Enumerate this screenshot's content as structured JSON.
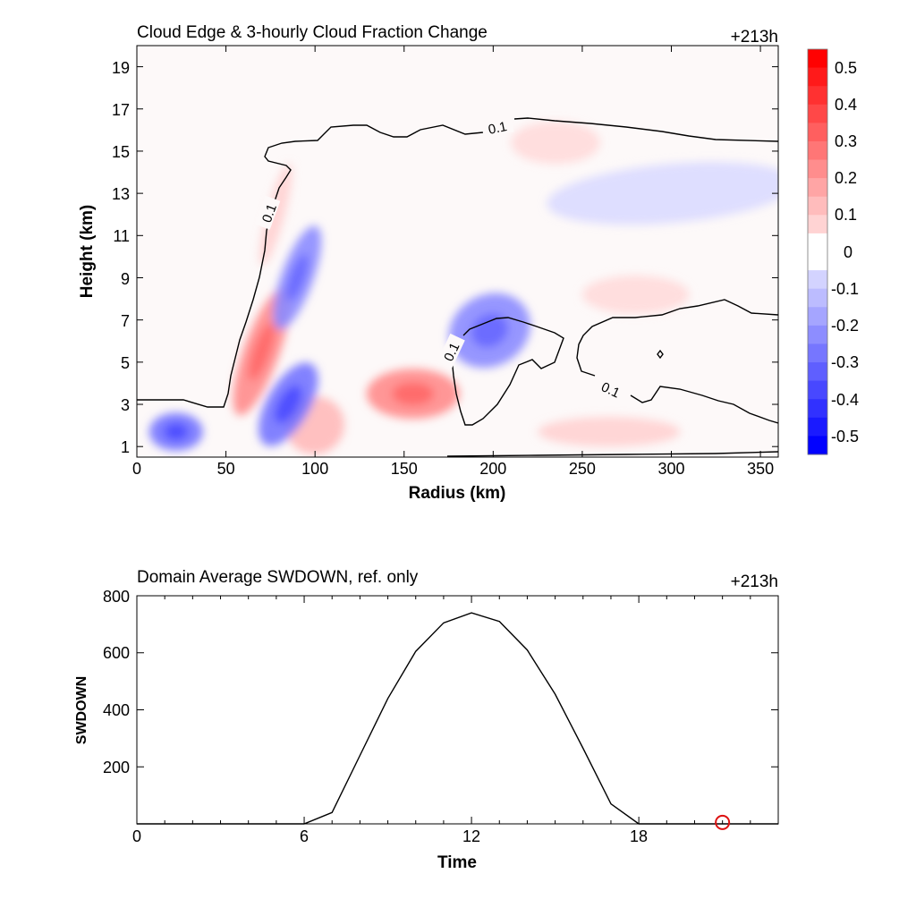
{
  "chart_data": [
    {
      "type": "heatmap",
      "title": "Cloud Edge & 3-hourly Cloud Fraction Change",
      "time_label": "+213h",
      "xlabel": "Radius (km)",
      "ylabel": "Height (km)",
      "xlim": [
        0,
        360
      ],
      "ylim": [
        0.5,
        20
      ],
      "xticks": [
        "0",
        "50",
        "100",
        "150",
        "200",
        "250",
        "300",
        "350"
      ],
      "yticks": [
        "1",
        "3",
        "5",
        "7",
        "9",
        "11",
        "13",
        "15",
        "17",
        "19"
      ],
      "colorbar": {
        "labels": [
          "0.5",
          "0.4",
          "0.3",
          "0.2",
          "0.1",
          "0",
          "-0.1",
          "-0.2",
          "-0.3",
          "-0.4",
          "-0.5"
        ],
        "min": -0.55,
        "max": 0.55,
        "step": 0.05,
        "positive_color": "#ff0000",
        "negative_color": "#0000ff"
      },
      "contour_labels": [
        "0.1",
        "0.1",
        "0.1",
        "0.1"
      ],
      "features": [
        {
          "kind": "positive",
          "x": 70,
          "y": 5.5,
          "value": 0.25
        },
        {
          "kind": "positive",
          "x": 78,
          "y": 12,
          "value": 0.1
        },
        {
          "kind": "positive",
          "x": 155,
          "y": 3.5,
          "value": 0.25
        },
        {
          "kind": "positive",
          "x": 100,
          "y": 2,
          "value": 0.15
        },
        {
          "kind": "positive",
          "x": 235,
          "y": 15.4,
          "value": 0.08
        },
        {
          "kind": "positive",
          "x": 280,
          "y": 8.2,
          "value": 0.08
        },
        {
          "kind": "positive",
          "x": 265,
          "y": 1.7,
          "value": 0.1
        },
        {
          "kind": "negative",
          "x": 22,
          "y": 1.7,
          "value": -0.3
        },
        {
          "kind": "negative",
          "x": 90,
          "y": 9,
          "value": -0.25
        },
        {
          "kind": "negative",
          "x": 85,
          "y": 3,
          "value": -0.3
        },
        {
          "kind": "negative",
          "x": 198,
          "y": 6.5,
          "value": -0.25
        },
        {
          "kind": "negative",
          "x": 300,
          "y": 13,
          "value": -0.08
        }
      ]
    },
    {
      "type": "line",
      "title": "Domain Average SWDOWN, ref. only",
      "time_label": "+213h",
      "xlabel": "Time",
      "ylabel": "SWDOWN",
      "xlim": [
        0,
        23
      ],
      "ylim": [
        0,
        800
      ],
      "xticks": [
        "0",
        "6",
        "12",
        "18"
      ],
      "yticks": [
        "200",
        "400",
        "600",
        "800"
      ],
      "x": [
        0,
        1,
        2,
        3,
        4,
        5,
        6,
        7,
        8,
        9,
        10,
        11,
        12,
        13,
        14,
        15,
        16,
        17,
        18,
        19,
        20,
        21,
        22,
        23
      ],
      "series": [
        {
          "values": [
            0,
            0,
            0,
            0,
            0,
            0,
            0,
            40,
            240,
            440,
            605,
            705,
            740,
            710,
            610,
            455,
            265,
            70,
            0,
            0,
            0,
            0,
            0,
            0
          ]
        }
      ],
      "marker": {
        "x": 21,
        "y": 5,
        "color": "#dd1111"
      }
    }
  ]
}
